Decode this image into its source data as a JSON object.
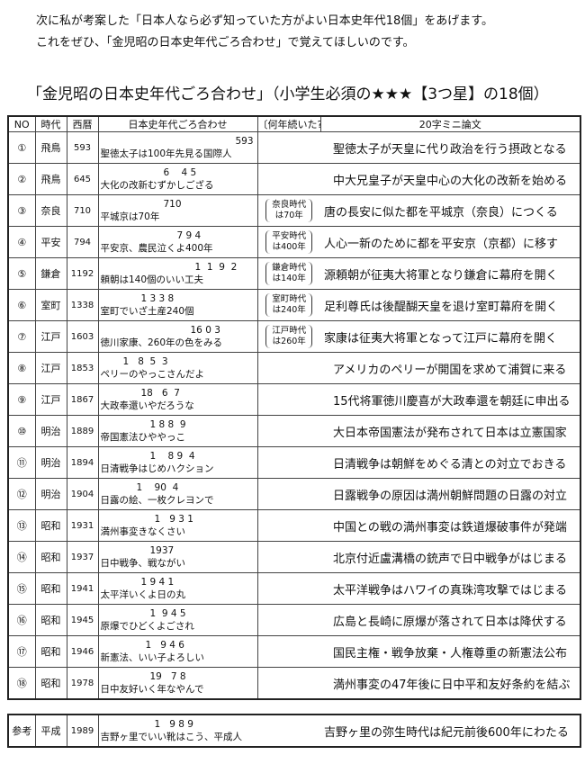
{
  "intro": [
    "次に私が考案した「日本人なら必ず知っていた方がよい日本史年代18個」をあげます。",
    "これをぜひ、「金児昭の日本史年代ごろ合わせ」で覚えてほしいのです。"
  ],
  "title": "「金児昭の日本史年代ごろ合わせ」（小学生必須の★★★【3つ星】の18個）",
  "headers": [
    "NO",
    "時代",
    "西暦",
    "日本史年代ごろ合わせ",
    "〔何年続いた?〕",
    "20字ミニ論文"
  ],
  "rows": [
    {
      "no": "①",
      "era": "飛鳥",
      "year": "593",
      "digits": "593",
      "goro": "聖徳太子は100年先見る国際人",
      "how": "",
      "essay": "聖徳太子が天皇に代り政治を行う摂政となる"
    },
    {
      "no": "②",
      "era": "飛鳥",
      "year": "645",
      "digits": "6    4 5",
      "goro": "大化の改新むずかしござる",
      "how": "",
      "essay": "中大兄皇子が天皇中心の大化の改新を始める"
    },
    {
      "no": "③",
      "era": "奈良",
      "year": "710",
      "digits": "710",
      "goro": "平城京は70年",
      "how": "奈良時代|は70年",
      "essay": "唐の長安に似た都を平城京（奈良）につくる"
    },
    {
      "no": "④",
      "era": "平安",
      "year": "794",
      "digits": "7 9 4",
      "goro": "平安京、農民泣くよ400年",
      "how": "平安時代|は400年",
      "essay": "人心一新のために都を平安京（京都）に移す"
    },
    {
      "no": "⑤",
      "era": "鎌倉",
      "year": "1192",
      "digits": "1  1  9  2",
      "goro": "頼朝は140個のいい工夫",
      "how": "鎌倉時代|は140年",
      "essay": "源頼朝が征夷大将軍となり鎌倉に幕府を開く"
    },
    {
      "no": "⑥",
      "era": "室町",
      "year": "1338",
      "digits": "1 3 3 8",
      "goro": "室町でいざ土産240個",
      "how": "室町時代|は240年",
      "essay": "足利尊氏は後醍醐天皇を退け室町幕府を開く"
    },
    {
      "no": "⑦",
      "era": "江戸",
      "year": "1603",
      "digits": "16 0 3",
      "goro": "徳川家康、260年の色をみる",
      "how": "江戸時代|は260年",
      "essay": "家康は征夷大将軍となって江戸に幕府を開く"
    },
    {
      "no": "⑧",
      "era": "江戸",
      "year": "1853",
      "digits": "1   8  5  3",
      "goro": "ペリーのやっこさんだよ",
      "how": "",
      "essay": "アメリカのペリーが開国を求めて浦賀に来る"
    },
    {
      "no": "⑨",
      "era": "江戸",
      "year": "1867",
      "digits": "18   6  7",
      "goro": "大政奉還いやだろうな",
      "how": "",
      "essay": "15代将軍徳川慶喜が大政奉還を朝廷に申出る"
    },
    {
      "no": "⑩",
      "era": "明治",
      "year": "1889",
      "digits": "1 8 8  9",
      "goro": "帝国憲法ひややっこ",
      "how": "",
      "essay": "大日本帝国憲法が発布されて日本は立憲国家"
    },
    {
      "no": "⑪",
      "era": "明治",
      "year": "1894",
      "digits": "1    8 9  4",
      "goro": "日清戦争はじめハクション",
      "how": "",
      "essay": "日清戦争は朝鮮をめぐる清との対立でおきる"
    },
    {
      "no": "⑫",
      "era": "明治",
      "year": "1904",
      "digits": "1    90  4",
      "goro": "日露の絵、一枚クレヨンで",
      "how": "",
      "essay": "日露戦争の原因は満州朝鮮問題の日露の対立"
    },
    {
      "no": "⑬",
      "era": "昭和",
      "year": "1931",
      "digits": "1   9 3 1",
      "goro": "満州事変きなくさい",
      "how": "",
      "essay": "中国との戦の満州事変は鉄道爆破事件が発端"
    },
    {
      "no": "⑭",
      "era": "昭和",
      "year": "1937",
      "digits": "1937",
      "goro": "日中戦争、戦ながい",
      "how": "",
      "essay": "北京付近盧溝橋の銃声で日中戦争がはじまる"
    },
    {
      "no": "⑮",
      "era": "昭和",
      "year": "1941",
      "digits": "1 9 4 1",
      "goro": "太平洋いくよ日の丸",
      "how": "",
      "essay": "太平洋戦争はハワイの真珠湾攻撃ではじまる"
    },
    {
      "no": "⑯",
      "era": "昭和",
      "year": "1945",
      "digits": "1  9 4 5",
      "goro": "原爆でひどくよごされ",
      "how": "",
      "essay": "広島と長崎に原爆が落されて日本は降伏する"
    },
    {
      "no": "⑰",
      "era": "昭和",
      "year": "1946",
      "digits": "1   9 4 6",
      "goro": "新憲法、いい子よろしい",
      "how": "",
      "essay": "国民主権・戦争放棄・人権尊重の新憲法公布"
    },
    {
      "no": "⑱",
      "era": "昭和",
      "year": "1978",
      "digits": "19   7 8",
      "goro": "日中友好いく年なやんで",
      "how": "",
      "essay": "満州事変の47年後に日中平和友好条約を結ぶ"
    }
  ],
  "reference": {
    "no": "参考",
    "era": "平成",
    "year": "1989",
    "digits": "1   9 8 9",
    "goro": "吉野ヶ里でいい靴はこう、平成人",
    "essay": "吉野ヶ里の弥生時代は紀元前後600年にわたる"
  }
}
